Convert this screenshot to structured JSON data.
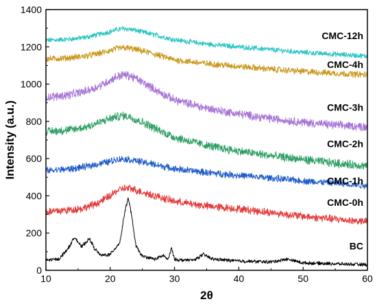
{
  "chart_data": {
    "type": "line",
    "title": "",
    "xlabel": "2θ",
    "ylabel": "Intensity (a.u.)",
    "xlim": [
      10,
      60
    ],
    "ylim": [
      0,
      1400
    ],
    "x_ticks": [
      10,
      20,
      30,
      40,
      50,
      60
    ],
    "y_ticks": [
      0,
      200,
      400,
      600,
      800,
      1000,
      1200,
      1400
    ],
    "grid": false,
    "legend": "none (series labeled directly on right side)",
    "series": [
      {
        "name": "BC",
        "color": "#000000",
        "noise": 8,
        "label_at": 130,
        "x": [
          10,
          12,
          13.5,
          14.5,
          15.5,
          16.2,
          16.8,
          17.5,
          18.5,
          20,
          21.5,
          22.3,
          22.8,
          23.3,
          24,
          25,
          27,
          28.3,
          29,
          29.5,
          30,
          31,
          33,
          34.5,
          36,
          40,
          45,
          47.5,
          50,
          55,
          60
        ],
        "y": [
          55,
          60,
          120,
          180,
          125,
          150,
          170,
          120,
          80,
          85,
          150,
          320,
          390,
          300,
          130,
          75,
          60,
          80,
          55,
          120,
          60,
          55,
          55,
          85,
          60,
          50,
          45,
          60,
          40,
          35,
          30
        ]
      },
      {
        "name": "CMC-0h",
        "color": "#E3393A",
        "noise": 18,
        "label_at": 365,
        "x": [
          10,
          12,
          14,
          16,
          18,
          20,
          21,
          22,
          23,
          24,
          26,
          28,
          30,
          35,
          40,
          45,
          50,
          55,
          60
        ],
        "y": [
          315,
          320,
          325,
          335,
          360,
          400,
          425,
          440,
          440,
          430,
          410,
          390,
          370,
          345,
          330,
          310,
          290,
          275,
          260
        ]
      },
      {
        "name": "CMC-1h",
        "color": "#1F5CC9",
        "noise": 16,
        "label_at": 480,
        "x": [
          10,
          12,
          14,
          16,
          18,
          20,
          21,
          22,
          23,
          24,
          26,
          28,
          30,
          35,
          40,
          45,
          50,
          55,
          60
        ],
        "y": [
          535,
          540,
          545,
          555,
          570,
          585,
          595,
          598,
          595,
          588,
          575,
          560,
          545,
          525,
          510,
          495,
          480,
          468,
          455
        ]
      },
      {
        "name": "CMC-2h",
        "color": "#2E9E64",
        "noise": 20,
        "label_at": 680,
        "x": [
          10,
          12,
          14,
          16,
          18,
          20,
          21,
          22,
          23,
          24,
          26,
          28,
          30,
          35,
          40,
          45,
          50,
          55,
          60
        ],
        "y": [
          745,
          750,
          755,
          768,
          790,
          815,
          825,
          830,
          825,
          810,
          780,
          745,
          715,
          670,
          640,
          615,
          595,
          575,
          560
        ]
      },
      {
        "name": "CMC-3h",
        "color": "#A773D6",
        "noise": 20,
        "label_at": 875,
        "x": [
          10,
          12,
          14,
          16,
          18,
          20,
          21,
          22,
          23,
          24,
          26,
          28,
          30,
          35,
          40,
          45,
          50,
          55,
          60
        ],
        "y": [
          930,
          935,
          945,
          960,
          985,
          1020,
          1040,
          1050,
          1045,
          1030,
          990,
          950,
          915,
          870,
          840,
          815,
          795,
          780,
          770
        ]
      },
      {
        "name": "CMC-4h",
        "color": "#C9971A",
        "noise": 15,
        "label_at": 1105,
        "x": [
          10,
          12,
          14,
          16,
          18,
          20,
          21,
          22,
          23,
          24,
          26,
          28,
          30,
          35,
          40,
          45,
          50,
          55,
          60
        ],
        "y": [
          1135,
          1138,
          1142,
          1150,
          1162,
          1180,
          1190,
          1195,
          1192,
          1185,
          1170,
          1150,
          1130,
          1110,
          1095,
          1080,
          1068,
          1058,
          1050
        ]
      },
      {
        "name": "CMC-12h",
        "color": "#29C4C4",
        "noise": 12,
        "label_at": 1260,
        "x": [
          10,
          12,
          14,
          16,
          18,
          20,
          21,
          22,
          23,
          24,
          26,
          28,
          30,
          35,
          40,
          45,
          50,
          55,
          60
        ],
        "y": [
          1235,
          1238,
          1242,
          1250,
          1265,
          1282,
          1292,
          1298,
          1295,
          1288,
          1272,
          1255,
          1238,
          1215,
          1200,
          1185,
          1170,
          1160,
          1150
        ]
      }
    ]
  }
}
